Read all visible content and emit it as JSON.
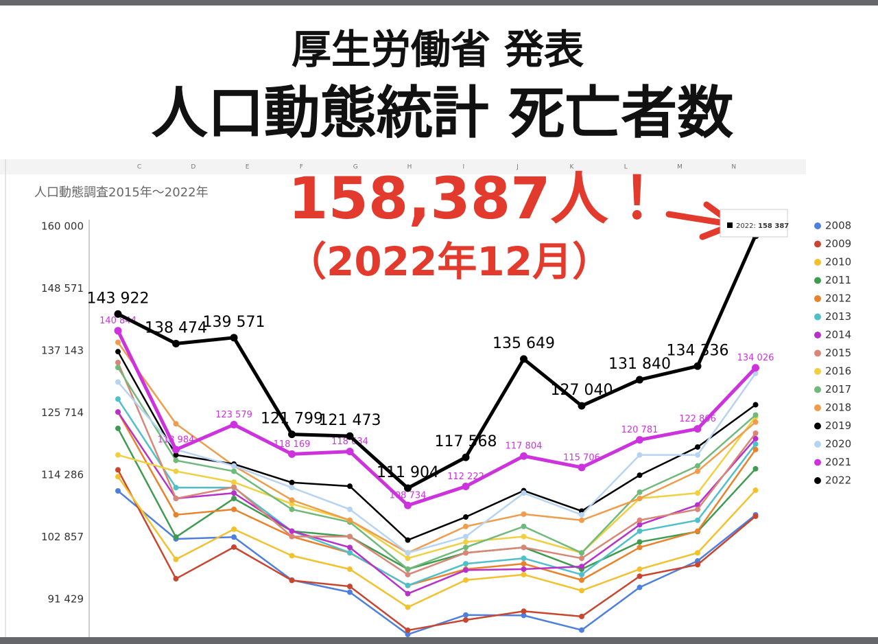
{
  "header": {
    "line1": "厚生労働省 発表",
    "line2": "人口動態統計 死亡者数"
  },
  "spreadsheet": {
    "columns": [
      "C",
      "D",
      "E",
      "F",
      "G",
      "H",
      "I",
      "J",
      "K",
      "L",
      "M",
      "N"
    ]
  },
  "chart_data": {
    "type": "line",
    "title": "人口動態調査2015年〜2022年",
    "annotations": [
      "158,387人！",
      "（2022年12月）"
    ],
    "categories": [
      null,
      null,
      null,
      null,
      null,
      null,
      null,
      null,
      null,
      null,
      null,
      null
    ],
    "ylim": [
      84000,
      160000
    ],
    "yticks": [
      {
        "value": 91429,
        "label": "91 429"
      },
      {
        "value": 102857,
        "label": "102 857"
      },
      {
        "value": 114286,
        "label": "114 286"
      },
      {
        "value": 125714,
        "label": "125 714"
      },
      {
        "value": 137143,
        "label": "137 143"
      },
      {
        "value": 148571,
        "label": "148 571"
      },
      {
        "value": 160000,
        "label": "160 000"
      }
    ],
    "grid": false,
    "legend": "right",
    "series": [
      {
        "name": "2008",
        "color": "#4e7fde",
        "values": [
          111394,
          102561,
          102900,
          95000,
          92769,
          85000,
          88584,
          88500,
          85803,
          93654,
          98516,
          107000
        ]
      },
      {
        "name": "2009",
        "color": "#c8452e",
        "values": [
          115257,
          95246,
          101061,
          94930,
          93831,
          85760,
          87661,
          89268,
          88301,
          95705,
          97824,
          106732
        ]
      },
      {
        "name": "2010",
        "color": "#f2c12e",
        "values": [
          114018,
          98804,
          104351,
          99480,
          97000,
          90000,
          95000,
          96000,
          93061,
          97000,
          100000,
          111516
        ]
      },
      {
        "name": "2011",
        "color": "#3e9b4f",
        "values": [
          122892,
          102900,
          110000,
          104000,
          103000,
          97000,
          100000,
          101000,
          97000,
          102000,
          103910,
          115460
        ]
      },
      {
        "name": "2012",
        "color": "#e9822a",
        "values": [
          125887,
          107000,
          108000,
          103000,
          100000,
          94000,
          97000,
          98000,
          95000,
          101000,
          104000,
          119000
        ]
      },
      {
        "name": "2013",
        "color": "#4fc0c9",
        "values": [
          128279,
          112000,
          112000,
          104000,
          100039,
          94000,
          98000,
          99000,
          96000,
          104000,
          106000,
          120000
        ]
      },
      {
        "name": "2014",
        "color": "#b630c9",
        "values": [
          125911,
          110000,
          111000,
          104000,
          101000,
          92500,
          96825,
          97000,
          97500,
          105167,
          108811,
          121000
        ]
      },
      {
        "name": "2015",
        "color": "#d98677",
        "values": [
          135000,
          110000,
          112094,
          103000,
          103000,
          96000,
          100000,
          101000,
          99000,
          106000,
          108000,
          122000
        ]
      },
      {
        "name": "2016",
        "color": "#f0d040",
        "values": [
          118000,
          115000,
          113000,
          109000,
          106000,
          99000,
          102000,
          103000,
          100000,
          110000,
          111000,
          125000
        ]
      },
      {
        "name": "2017",
        "color": "#6fb97a",
        "values": [
          134091,
          117000,
          115000,
          108000,
          105653,
          97000,
          101000,
          104866,
          100000,
          111154,
          116000,
          125345
        ]
      },
      {
        "name": "2018",
        "color": "#ef9c4b",
        "values": [
          138710,
          123734,
          116000,
          109711,
          106000,
          100000,
          104862,
          107112,
          106000,
          110000,
          115000,
          124048
        ]
      },
      {
        "name": "2019",
        "color": "#000000",
        "values": [
          137000,
          118000,
          116329,
          112939,
          112258,
          102354,
          106594,
          111436,
          107694,
          114284,
          119462,
          127236
        ]
      },
      {
        "name": "2020",
        "color": "#b7d3f2",
        "values": [
          131422,
          119000,
          116000,
          112000,
          108000,
          100000,
          103000,
          111000,
          107000,
          118000,
          118000,
          133000
        ]
      },
      {
        "name": "2021",
        "color": "#cc33dd",
        "values": [
          140844,
          118984,
          123579,
          118169,
          118634,
          108734,
          112222,
          117804,
          115706,
          120781,
          122806,
          134026
        ],
        "value_labels": [
          "140 844",
          "118 984",
          "123 579",
          "118 169",
          "118 634",
          "108 734",
          "112 222",
          "117 804",
          "115 706",
          "120 781",
          "122 806",
          "134 026"
        ]
      },
      {
        "name": "2022",
        "color": "#000000",
        "values": [
          143922,
          138474,
          139571,
          121799,
          121473,
          111904,
          117568,
          135649,
          127040,
          131840,
          134336,
          158387
        ],
        "value_labels": [
          "143 922",
          "138 474",
          "139 571",
          "121 799",
          "121 473",
          "111 904",
          "117 568",
          "135 649",
          "127 040",
          "131 840",
          "134 336",
          "158 387"
        ]
      }
    ]
  }
}
